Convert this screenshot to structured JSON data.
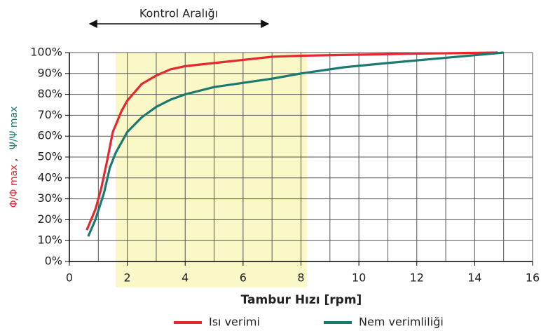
{
  "chart_data": {
    "type": "line",
    "annotation": "Kontrol Aralığı",
    "xlabel": "Tambur Hızı [rpm]",
    "ylabel": [
      "Φ/Φ max",
      ",",
      "Ψ/Ψ max"
    ],
    "shaded_range": [
      1.6,
      8.2
    ],
    "shaded_color": "#fbf8c8",
    "xlim": [
      0,
      16
    ],
    "xticks": [
      0,
      2,
      4,
      6,
      8,
      10,
      12,
      14,
      16
    ],
    "xgrid": [
      1,
      2,
      3,
      4,
      5,
      6,
      7,
      8,
      9,
      10,
      11,
      12,
      13,
      14,
      15,
      16
    ],
    "ylim": [
      0,
      100
    ],
    "yticks": [
      {
        "value": 0,
        "label": "0%"
      },
      {
        "value": 10,
        "label": "10%"
      },
      {
        "value": 20,
        "label": "20%"
      },
      {
        "value": 30,
        "label": "30%"
      },
      {
        "value": 40,
        "label": "40%"
      },
      {
        "value": 50,
        "label": "50%"
      },
      {
        "value": 60,
        "label": "60%"
      },
      {
        "value": 70,
        "label": "70%"
      },
      {
        "value": 80,
        "label": "80%"
      },
      {
        "value": 90,
        "label": "90%"
      },
      {
        "value": 100,
        "label": "100%"
      }
    ],
    "grid": true,
    "series": [
      {
        "name": "Isı verimi",
        "color": "#e8262e",
        "x": [
          0.6,
          0.9,
          1.1,
          1.3,
          1.5,
          1.8,
          2,
          2.5,
          3,
          3.5,
          4,
          5,
          6,
          7,
          8,
          10,
          12,
          14.8
        ],
        "values": [
          15,
          25,
          35,
          48,
          62,
          72,
          77,
          85,
          89,
          92,
          93.5,
          95,
          96.5,
          98,
          98.5,
          99,
          99.5,
          100
        ]
      },
      {
        "name": "Nem verimliliği",
        "color": "#1a7a6e",
        "x": [
          0.65,
          0.9,
          1.2,
          1.4,
          1.6,
          2,
          2.5,
          3,
          3.5,
          4,
          5,
          6,
          7,
          8,
          9.5,
          11,
          13,
          15
        ],
        "values": [
          12,
          20,
          33,
          45,
          52,
          62,
          69,
          74,
          77.5,
          80,
          83.5,
          85.5,
          87.5,
          90,
          93,
          95,
          97.5,
          100
        ]
      }
    ]
  }
}
